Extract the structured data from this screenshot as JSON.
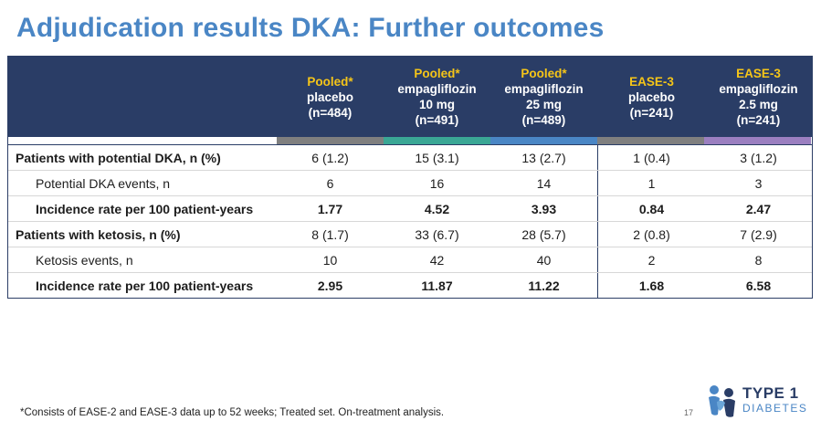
{
  "title": "Adjudication results DKA: Further outcomes",
  "columns": [
    {
      "line1": "Pooled*",
      "line2": "placebo",
      "line3": "(n=484)",
      "line4": "",
      "bar_color": "#7f7f7f"
    },
    {
      "line1": "Pooled*",
      "line2": "empagliflozin",
      "line3": "10 mg",
      "line4": "(n=491)",
      "bar_color": "#3aa795"
    },
    {
      "line1": "Pooled*",
      "line2": "empagliflozin",
      "line3": "25 mg",
      "line4": "(n=489)",
      "bar_color": "#4a86c5"
    },
    {
      "line1": "EASE-3",
      "line2": "placebo",
      "line3": "(n=241)",
      "line4": "",
      "bar_color": "#7f7f7f"
    },
    {
      "line1": "EASE-3",
      "line2": "empagliflozin",
      "line3": "2.5 mg",
      "line4": "(n=241)",
      "bar_color": "#9b7fc0"
    }
  ],
  "rows": [
    {
      "label": "Patients with potential DKA, n (%)",
      "values": [
        "6 (1.2)",
        "15 (3.1)",
        "13 (2.7)",
        "1 (0.4)",
        "3 (1.2)"
      ]
    },
    {
      "label": "Potential DKA events, n",
      "values": [
        "6",
        "16",
        "14",
        "1",
        "3"
      ]
    },
    {
      "label": "Incidence rate per 100 patient-years",
      "values": [
        "1.77",
        "4.52",
        "3.93",
        "0.84",
        "2.47"
      ]
    },
    {
      "label": "Patients with ketosis, n (%)",
      "values": [
        "8 (1.7)",
        "33 (6.7)",
        "28 (5.7)",
        "2 (0.8)",
        "7 (2.9)"
      ]
    },
    {
      "label": "Ketosis events, n",
      "values": [
        "10",
        "42",
        "40",
        "2",
        "8"
      ]
    },
    {
      "label": "Incidence rate per 100 patient-years",
      "values": [
        "2.95",
        "11.87",
        "11.22",
        "1.68",
        "6.58"
      ]
    }
  ],
  "footnote": "*Consists of EASE-2 and EASE-3 data up to 52 weeks; Treated set. On-treatment analysis.",
  "page_number": "17",
  "logo": {
    "line1": "TYPE 1",
    "line2": "DIABETES"
  },
  "colors": {
    "title": "#4a86c5",
    "header_bg": "#2a3d66",
    "accent": "#f5c518"
  }
}
